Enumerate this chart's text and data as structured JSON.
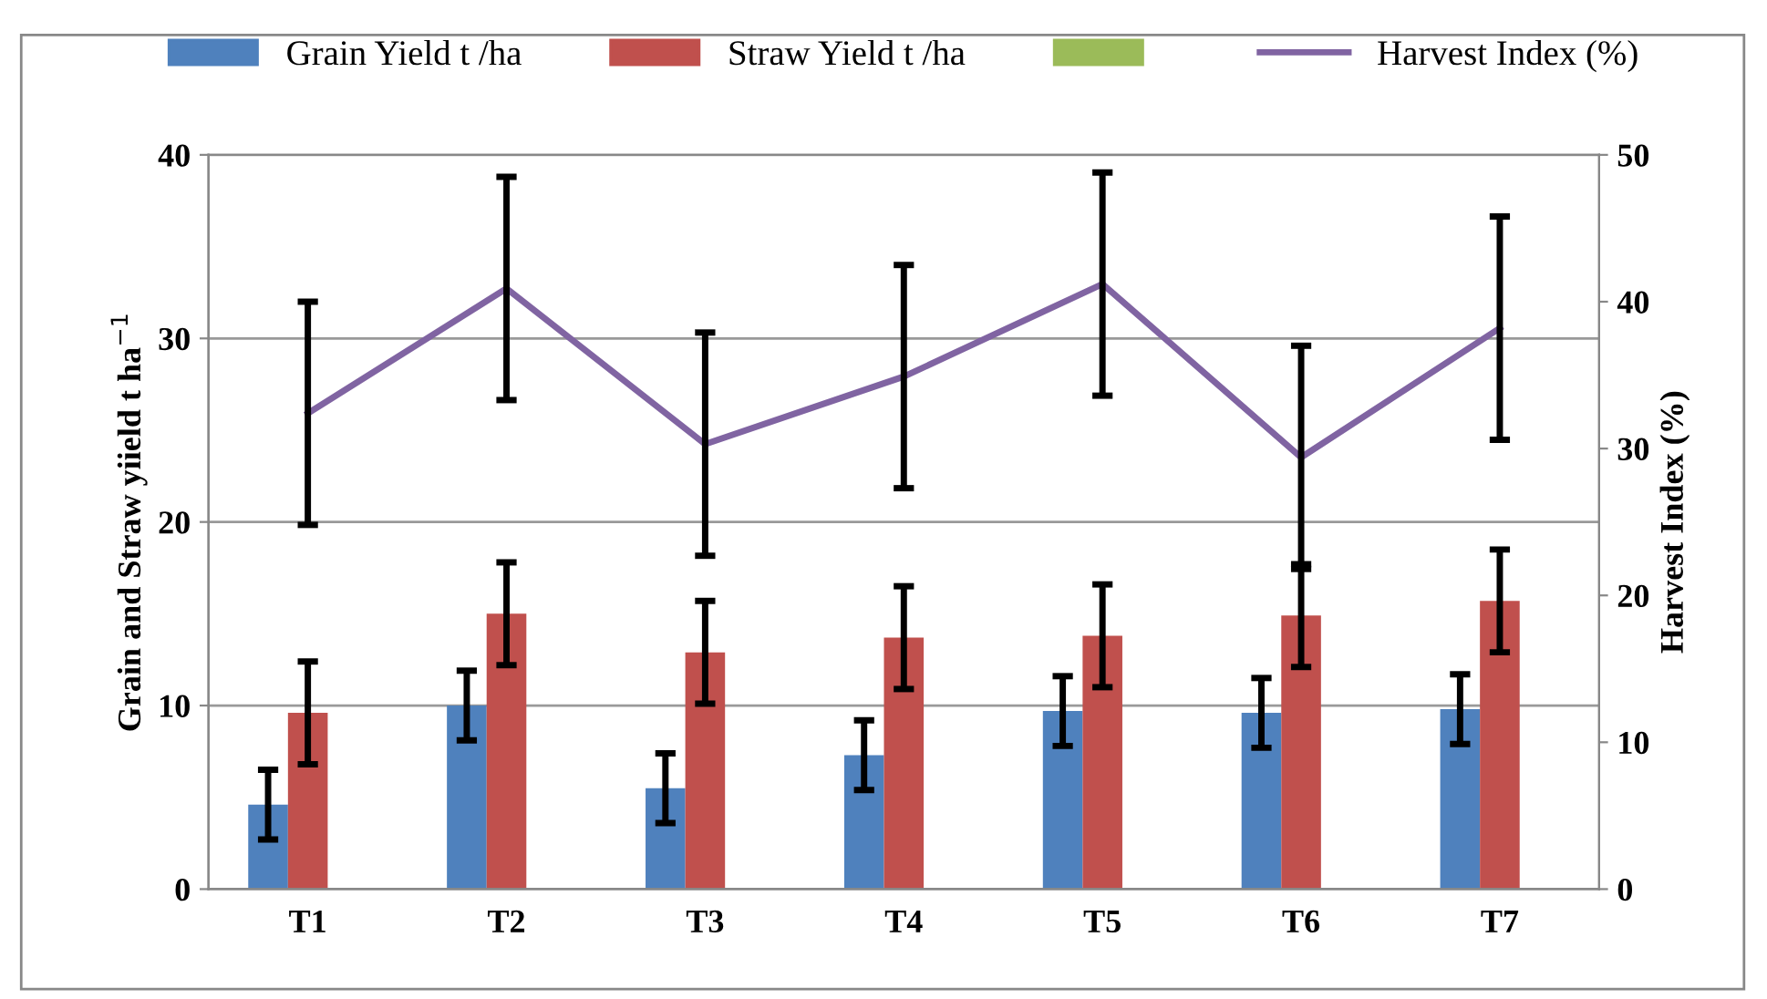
{
  "chart_data": {
    "type": "bar",
    "categories": [
      "T1",
      "T2",
      "T3",
      "T4",
      "T5",
      "T6",
      "T7"
    ],
    "series": [
      {
        "name": "Grain Yield t /ha",
        "color": "#4f81bd",
        "values": [
          4.6,
          10.0,
          5.5,
          7.3,
          9.7,
          9.6,
          9.8
        ],
        "errors": [
          1.9,
          1.9,
          1.9,
          1.9,
          1.9,
          1.9,
          1.9
        ]
      },
      {
        "name": "Straw Yield t /ha",
        "color": "#c0504d",
        "values": [
          9.6,
          15.0,
          12.9,
          13.7,
          13.8,
          14.9,
          15.7
        ],
        "errors": [
          2.8,
          2.8,
          2.8,
          2.8,
          2.8,
          2.8,
          2.8
        ]
      },
      {
        "color": "#9bbb59",
        "values": [
          null,
          null,
          null,
          null,
          null,
          null,
          null
        ]
      },
      {
        "name": "Harvest Index (%)",
        "type": "line",
        "axis": "y2",
        "color": "#8064a2",
        "values": [
          32.4,
          40.9,
          30.3,
          34.9,
          41.2,
          29.4,
          38.2
        ],
        "errors": [
          7.6,
          7.6,
          7.6,
          7.6,
          7.6,
          7.6,
          7.6
        ]
      }
    ],
    "ylabel": "Grain and Straw yiield t ha$^{−1}$",
    "y2label": "Harvest Index (%)",
    "ylim": [
      0,
      40
    ],
    "yticks": [
      0,
      10,
      20,
      30,
      40
    ],
    "y2lim": [
      0,
      50
    ],
    "y2ticks": [
      0,
      10,
      20,
      30,
      40,
      50
    ],
    "grid": "y",
    "legend": "top",
    "marker": "none",
    "line_style": "solid"
  }
}
